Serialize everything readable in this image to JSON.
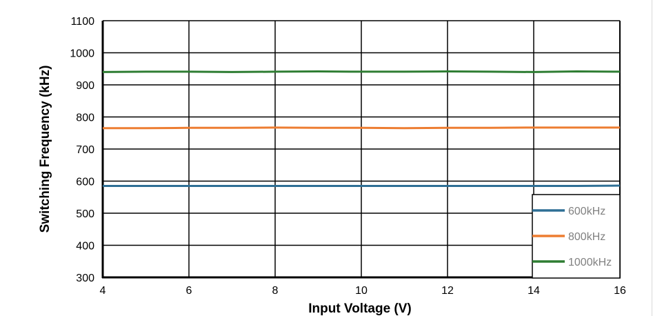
{
  "chart_data": {
    "type": "line",
    "title": "",
    "xlabel": "Input Voltage (V)",
    "ylabel": "Switching Frequency (kHz)",
    "xlim": [
      4,
      16
    ],
    "ylim": [
      300,
      1100
    ],
    "xticks": [
      4,
      6,
      8,
      10,
      12,
      14,
      16
    ],
    "yticks": [
      300,
      400,
      500,
      600,
      700,
      800,
      900,
      1000,
      1100
    ],
    "grid": true,
    "legend_position": "bottom-right",
    "x": [
      4,
      5,
      6,
      7,
      8,
      9,
      10,
      11,
      12,
      13,
      14,
      15,
      16
    ],
    "series": [
      {
        "name": "600kHz",
        "color": "#2e6f95",
        "values": [
          585,
          585,
          585,
          585,
          585,
          585,
          585,
          585,
          585,
          585,
          585,
          585,
          586
        ]
      },
      {
        "name": "800kHz",
        "color": "#ed7d31",
        "values": [
          765,
          765,
          766,
          766,
          767,
          766,
          766,
          765,
          766,
          766,
          767,
          767,
          767
        ]
      },
      {
        "name": "1000kHz",
        "color": "#2e7d32",
        "values": [
          940,
          941,
          941,
          940,
          941,
          942,
          941,
          941,
          942,
          941,
          940,
          942,
          941
        ]
      }
    ]
  }
}
